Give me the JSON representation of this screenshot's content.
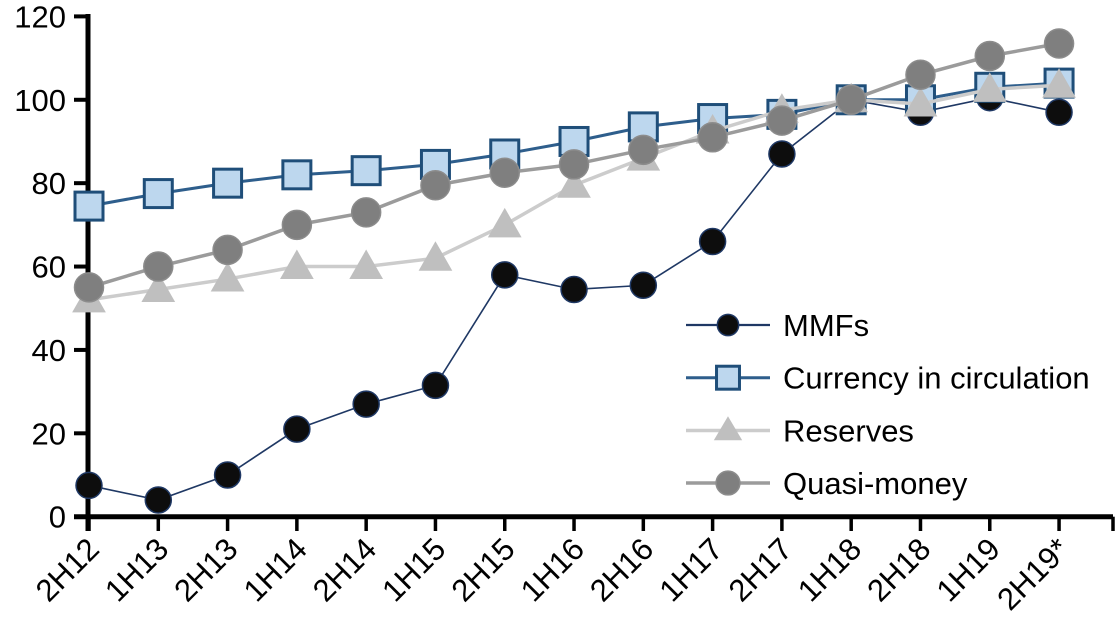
{
  "chart_data": {
    "type": "line",
    "title": "",
    "xlabel": "",
    "ylabel": "",
    "grid": false,
    "background_color": "#FFFFFF",
    "axis_color": "#000000",
    "text_color": "#000000",
    "categories": [
      "2H12",
      "1H13",
      "2H13",
      "1H14",
      "2H14",
      "1H15",
      "2H15",
      "1H16",
      "2H16",
      "1H17",
      "2H17",
      "1H18",
      "2H18",
      "1H19",
      "2H19*"
    ],
    "x_axis": {
      "labels": [
        "2H12",
        "1H13",
        "2H13",
        "1H14",
        "2H14",
        "1H15",
        "2H15",
        "1H16",
        "2H16",
        "1H17",
        "2H17",
        "1H18",
        "2H18",
        "1H19",
        "2H19*"
      ],
      "label_rotation_deg": -45
    },
    "y_axis": {
      "min": 0,
      "max": 120,
      "step": 20,
      "ticks": [
        0,
        20,
        40,
        60,
        80,
        100,
        120
      ]
    },
    "series": [
      {
        "name": "MMFs",
        "marker": "circle",
        "marker_fill": "#0D0D0D",
        "marker_stroke": "#1F3864",
        "marker_stroke_width": 1.5,
        "marker_size": 13,
        "line_color": "#1F3864",
        "line_width": 1.6,
        "values": [
          7.5,
          4,
          10,
          21,
          27,
          31.5,
          58,
          54.5,
          55.5,
          66,
          87,
          100,
          97,
          100.5,
          97
        ]
      },
      {
        "name": "Currency in circulation",
        "marker": "square",
        "marker_fill": "#BDD7EE",
        "marker_stroke": "#1F4E79",
        "marker_stroke_width": 3,
        "marker_size": 14,
        "line_color": "#2E5E8C",
        "line_width": 3,
        "values": [
          74.5,
          77.5,
          80,
          82,
          83,
          84.5,
          87,
          90,
          93.5,
          95.5,
          96.5,
          100,
          100,
          103,
          104
        ]
      },
      {
        "name": "Reserves",
        "marker": "triangle",
        "marker_fill": "#BFBFBF",
        "marker_stroke": "#BFBFBF",
        "marker_stroke_width": 1,
        "marker_size": 15,
        "line_color": "#CCCCCC",
        "line_width": 3.5,
        "values": [
          52,
          54.5,
          57,
          60,
          60,
          62,
          70,
          79.5,
          86,
          92.5,
          97.5,
          100,
          99,
          102.5,
          103.5
        ]
      },
      {
        "name": "Quasi-money",
        "marker": "circle",
        "marker_fill": "#7F7F7F",
        "marker_stroke": "#8C8C8C",
        "marker_stroke_width": 1.5,
        "marker_size": 14.5,
        "line_color": "#9B9B9B",
        "line_width": 3.5,
        "values": [
          55,
          60,
          64,
          70,
          73,
          79.5,
          82.5,
          84.5,
          88,
          91,
          95,
          100,
          106,
          110.5,
          113.5
        ]
      }
    ],
    "legend": {
      "position": "inside-right",
      "entries": [
        "MMFs",
        "Currency in circulation",
        "Reserves",
        "Quasi-money"
      ]
    }
  }
}
